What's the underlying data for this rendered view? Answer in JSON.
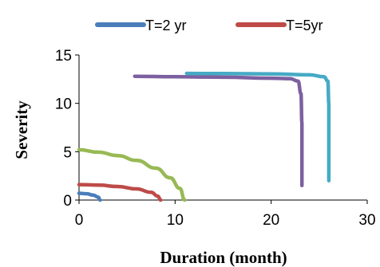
{
  "chart_data": {
    "type": "line",
    "xlabel": "Duration (month)",
    "ylabel": "Severity",
    "xlim": [
      0,
      30
    ],
    "ylim": [
      0,
      15
    ],
    "x_ticks": [
      "0",
      "10",
      "20",
      "30"
    ],
    "y_ticks": [
      "0",
      "5",
      "10",
      "15"
    ],
    "grid": false,
    "legend_position": "top",
    "series": [
      {
        "name": "T=2 yr",
        "color": "#4a7ebb",
        "points": [
          [
            0,
            0.7
          ],
          [
            0.8,
            0.65
          ],
          [
            1.5,
            0.5
          ],
          [
            2.0,
            0.3
          ],
          [
            2.2,
            0.0
          ]
        ]
      },
      {
        "name": "T=5yr",
        "color": "#be4b48",
        "points": [
          [
            0,
            1.6
          ],
          [
            2,
            1.55
          ],
          [
            4,
            1.4
          ],
          [
            6,
            1.15
          ],
          [
            7.5,
            0.8
          ],
          [
            8.2,
            0.4
          ],
          [
            8.5,
            0.0
          ]
        ]
      },
      {
        "color": "#98b954",
        "points": [
          [
            0,
            5.2
          ],
          [
            2,
            4.95
          ],
          [
            4,
            4.6
          ],
          [
            6,
            4.1
          ],
          [
            8,
            3.3
          ],
          [
            9.5,
            2.3
          ],
          [
            10.5,
            1.2
          ],
          [
            11,
            0.0
          ]
        ]
      },
      {
        "color": "#7d60a0",
        "points": [
          [
            5.8,
            12.8
          ],
          [
            10,
            12.75
          ],
          [
            15,
            12.7
          ],
          [
            20,
            12.6
          ],
          [
            22,
            12.55
          ],
          [
            22.8,
            12.3
          ],
          [
            23.1,
            11
          ],
          [
            23.2,
            8
          ],
          [
            23.2,
            4
          ],
          [
            23.2,
            1.5
          ]
        ]
      },
      {
        "color": "#46aac5",
        "points": [
          [
            11.2,
            13.1
          ],
          [
            15,
            13.08
          ],
          [
            20,
            13.05
          ],
          [
            24,
            12.95
          ],
          [
            25.5,
            12.75
          ],
          [
            25.9,
            12.3
          ],
          [
            26.0,
            10
          ],
          [
            26.0,
            6
          ],
          [
            26.0,
            2.0
          ]
        ]
      }
    ]
  }
}
